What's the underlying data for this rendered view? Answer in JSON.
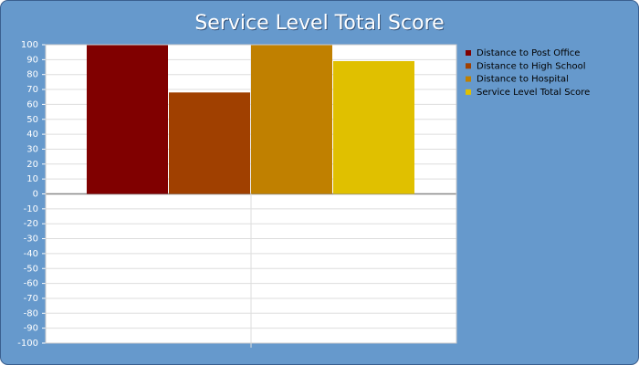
{
  "chart_data": {
    "type": "bar",
    "title": "Service Level Total Score",
    "categories": [
      null
    ],
    "series": [
      {
        "name": "Distance to Post Office",
        "color": "#800000",
        "values": [
          100
        ]
      },
      {
        "name": "Distance to High School",
        "color": "#a04000",
        "values": [
          68
        ]
      },
      {
        "name": "Distance to Hospital",
        "color": "#c08000",
        "values": [
          100
        ]
      },
      {
        "name": "Service Level Total Score",
        "color": "#e0c000",
        "values": [
          89
        ]
      }
    ],
    "ylim": [
      -100,
      100
    ],
    "yticks": [
      -100,
      -90,
      -80,
      -70,
      -60,
      -50,
      -40,
      -30,
      -20,
      -10,
      0,
      10,
      20,
      30,
      40,
      50,
      60,
      70,
      80,
      90,
      100
    ],
    "grid": true,
    "legend": "right"
  }
}
